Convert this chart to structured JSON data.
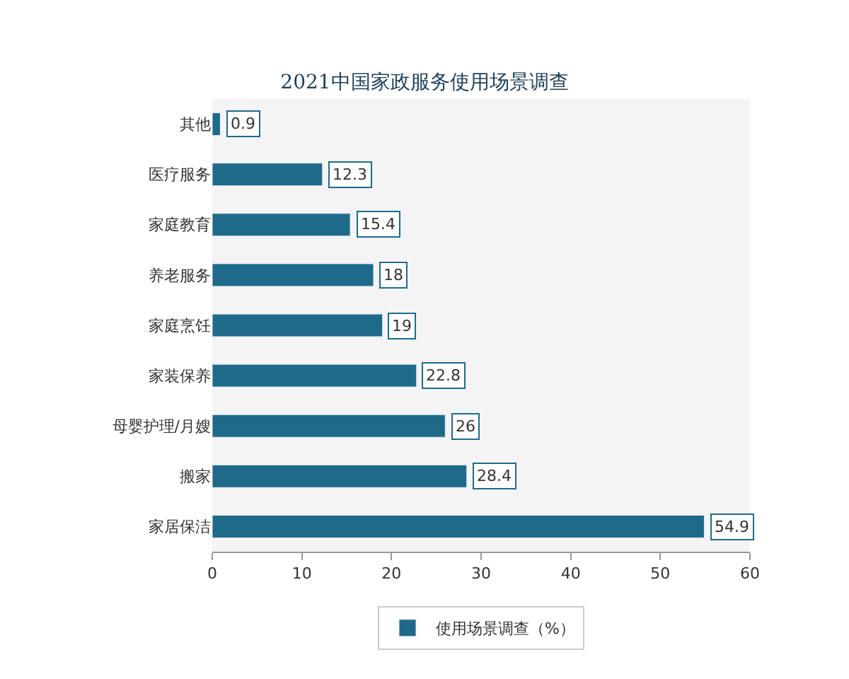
{
  "chart_data": {
    "type": "bar",
    "orientation": "horizontal",
    "title": "2021中国家政服务使用场景调查",
    "categories": [
      "其他",
      "医疗服务",
      "家庭教育",
      "养老服务",
      "家庭烹饪",
      "家装保养",
      "母婴护理/月嫂",
      "搬家",
      "家居保洁"
    ],
    "series": [
      {
        "name": "使用场景调查（%）",
        "color": "#1f6a8a",
        "values": [
          0.9,
          12.3,
          15.4,
          18,
          19,
          22.8,
          26,
          28.4,
          54.9
        ]
      }
    ],
    "xlim": [
      0,
      60
    ],
    "xticks": [
      0,
      10,
      20,
      30,
      40,
      50,
      60
    ],
    "data_labels": true,
    "legend": "bottom",
    "grid": false
  }
}
